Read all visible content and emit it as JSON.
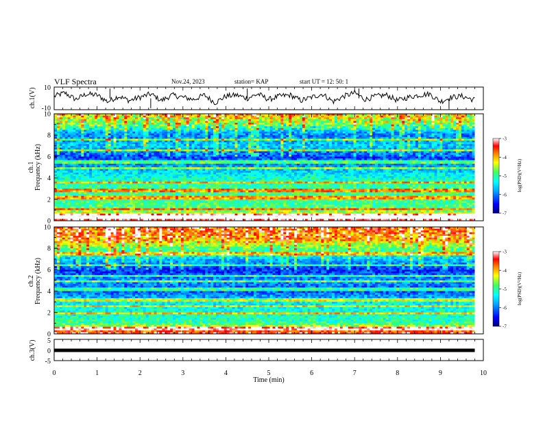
{
  "header": {
    "title": "VLF Spectra",
    "date": "Nov.24, 2023",
    "station": "station= KAP",
    "start": "start  UT  =   12: 50: 1"
  },
  "colors": {
    "spectrum": [
      "#0000a0",
      "#0000ff",
      "#00aaff",
      "#00ffff",
      "#40ff80",
      "#ffff00",
      "#ff8000",
      "#ff0000",
      "#ffffff"
    ]
  },
  "chart_data": [
    {
      "type": "line",
      "ylabel": "ch.1(V)",
      "ylim": [
        -10,
        10
      ],
      "yticks": [
        "10",
        "-10"
      ],
      "xlim": [
        0,
        10
      ],
      "x": [
        0,
        0.25,
        0.5,
        0.75,
        1,
        1.25,
        1.5,
        1.75,
        2,
        2.25,
        2.5,
        2.75,
        3,
        3.25,
        3.5,
        3.75,
        4,
        4.25,
        4.5,
        4.75,
        5,
        5.25,
        5.5,
        5.75,
        6,
        6.25,
        6.5,
        6.75,
        7,
        7.25,
        7.5,
        7.75,
        8,
        8.25,
        8.5,
        8.75,
        9,
        9.25,
        9.5,
        9.75
      ],
      "values": [
        2,
        5,
        -1,
        4,
        3,
        -3,
        2,
        -2,
        1,
        4,
        -2,
        3,
        1,
        -1,
        3,
        -4,
        2,
        3,
        0,
        4,
        -1,
        2,
        3,
        -2,
        1,
        4,
        -3,
        2,
        5,
        -1,
        2,
        3,
        -2,
        1,
        3,
        4,
        -3,
        1,
        2,
        -1
      ]
    },
    {
      "type": "heatmap",
      "ylabel": "ch.1",
      "ylabel2": "Frequency (kHz)",
      "ylim": [
        0,
        10
      ],
      "xlim": [
        0,
        10
      ],
      "yticks": [
        "0",
        "2",
        "4",
        "6",
        "8",
        "10"
      ],
      "colorbar": {
        "label": "log(PSD)(V²/Hz)",
        "range": [
          -7,
          -3
        ],
        "ticks": [
          "-3",
          "-4",
          "-5",
          "-6",
          "-7"
        ]
      },
      "bands_khz": [
        0.3,
        0.6,
        1.1,
        2.2,
        2.8,
        3.6,
        4.9,
        5.5,
        6.6,
        7.6
      ],
      "intensity_by_freq": [
        1,
        0.55,
        0.5,
        0.52,
        0.45,
        0.3,
        0.2,
        0.35,
        0.25,
        0.5,
        0.7
      ]
    },
    {
      "type": "heatmap",
      "ylabel": "ch.2",
      "ylabel2": "Frequency (kHz)",
      "ylim": [
        0,
        10
      ],
      "xlim": [
        0,
        10
      ],
      "yticks": [
        "0",
        "2",
        "4",
        "6",
        "8",
        "10"
      ],
      "colorbar": {
        "label": "log(PSD)(V²/Hz)",
        "range": [
          -7,
          -3
        ],
        "ticks": [
          "-3",
          "-4",
          "-5",
          "-6",
          "-7"
        ]
      },
      "bands_khz": [
        0.5,
        1.9,
        2.6,
        3.2,
        4.2,
        4.9,
        5.4,
        6.4,
        7.5
      ],
      "intensity_by_freq": [
        0.95,
        0.5,
        0.45,
        0.4,
        0.2,
        0.3,
        0.15,
        0.35,
        0.55,
        0.75,
        0.8
      ]
    },
    {
      "type": "line",
      "ylabel": "ch.3(V)",
      "ylim": [
        -5,
        5
      ],
      "yticks": [
        "5",
        "0",
        "-5"
      ],
      "xlim": [
        0,
        10
      ],
      "x": [
        0,
        9.8
      ],
      "values": [
        0,
        0
      ]
    }
  ],
  "xaxis": {
    "label": "Time (min)",
    "ticks": [
      "0",
      "1",
      "2",
      "3",
      "4",
      "5",
      "6",
      "7",
      "8",
      "9",
      "10"
    ]
  }
}
